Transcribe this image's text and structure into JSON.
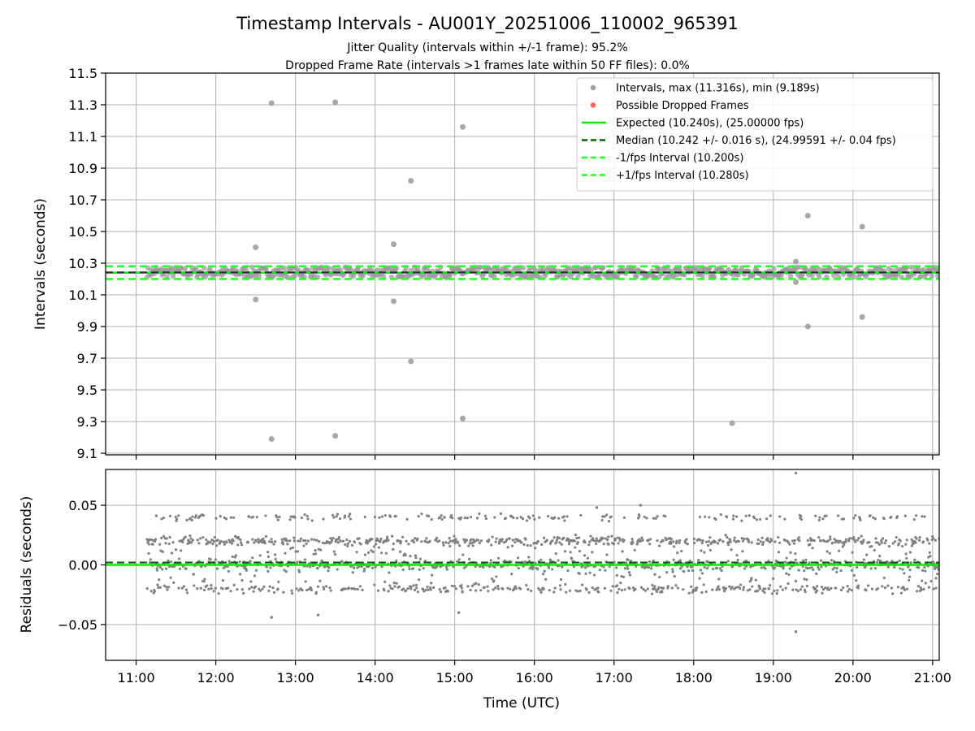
{
  "title": "Timestamp Intervals - AU001Y_20251006_110002_965391",
  "subtitle_lines": [
    "Jitter Quality (intervals within +/-1 frame): 95.2%",
    "Dropped Frame Rate (intervals >1 frames late within 50 FF files): 0.0%"
  ],
  "colors": {
    "points": "#808080",
    "dropped": "#ff4444",
    "expected": "#00ee00",
    "median": "#006400",
    "bounds": "#22ff22",
    "grid": "#b0b0b0",
    "band": "#888888"
  },
  "chart_data": [
    {
      "type": "scatter",
      "title": "",
      "xlabel": "",
      "ylabel": "Intervals (seconds)",
      "xlim": [
        "10:37",
        "21:05"
      ],
      "ylim": [
        9.09,
        11.5
      ],
      "y_ticks": [
        "9.1",
        "9.3",
        "9.5",
        "9.7",
        "9.9",
        "10.1",
        "10.3",
        "10.5",
        "10.7",
        "10.9",
        "11.1",
        "11.3",
        "11.5"
      ],
      "grid": true,
      "legend_position": "top-right",
      "time_span": [
        "11:08",
        "21:05"
      ],
      "dense_band": [
        10.21,
        10.275
      ],
      "outliers": [
        {
          "x": "12:30",
          "y": 10.4
        },
        {
          "x": "12:30",
          "y": 10.07
        },
        {
          "x": "12:42",
          "y": 11.31
        },
        {
          "x": "12:42",
          "y": 9.19
        },
        {
          "x": "13:30",
          "y": 11.316
        },
        {
          "x": "13:30",
          "y": 9.21
        },
        {
          "x": "14:14",
          "y": 10.42
        },
        {
          "x": "14:14",
          "y": 10.06
        },
        {
          "x": "14:27",
          "y": 10.82
        },
        {
          "x": "14:27",
          "y": 9.68
        },
        {
          "x": "15:06",
          "y": 11.16
        },
        {
          "x": "15:06",
          "y": 9.32
        },
        {
          "x": "18:29",
          "y": 9.29
        },
        {
          "x": "19:17",
          "y": 10.31
        },
        {
          "x": "19:17",
          "y": 10.18
        },
        {
          "x": "19:26",
          "y": 10.6
        },
        {
          "x": "19:26",
          "y": 9.9
        },
        {
          "x": "20:07",
          "y": 10.53
        },
        {
          "x": "20:07",
          "y": 9.96
        }
      ],
      "lines": {
        "expected": 10.24,
        "median": 10.242,
        "lower": 10.2,
        "upper": 10.28
      },
      "legend": [
        {
          "label": "Intervals, max (11.316s), min (9.189s)",
          "kind": "point",
          "color": "#a0a0a0"
        },
        {
          "label": "Possible Dropped Frames",
          "kind": "point",
          "color": "#ff6060"
        },
        {
          "label": "Expected (10.240s), (25.00000 fps)",
          "kind": "solid",
          "color": "#00ee00"
        },
        {
          "label": "Median (10.242 +/- 0.016 s), (24.99591 +/- 0.04 fps)",
          "kind": "dashed",
          "color": "#006400"
        },
        {
          "label": "-1/fps Interval (10.200s)",
          "kind": "dashed",
          "color": "#22ff22"
        },
        {
          "label": "+1/fps Interval (10.280s)",
          "kind": "dashed",
          "color": "#22ff22"
        }
      ]
    },
    {
      "type": "scatter",
      "title": "",
      "xlabel": "Time (UTC)",
      "ylabel": "Residuals (seconds)",
      "xlim": [
        "10:37",
        "21:05"
      ],
      "ylim": [
        -0.08,
        0.08
      ],
      "y_ticks": [
        "0.05",
        "0.00",
        "−0.05"
      ],
      "y_tick_values": [
        0.05,
        0.0,
        -0.05
      ],
      "x_ticks": [
        "11:00",
        "12:00",
        "13:00",
        "14:00",
        "15:00",
        "16:00",
        "17:00",
        "18:00",
        "19:00",
        "20:00",
        "21:00"
      ],
      "grid": true,
      "time_span": [
        "11:08",
        "21:05"
      ],
      "residual_clusters": [
        {
          "center": 0.02,
          "spread": 0.0025,
          "share": 0.3
        },
        {
          "center": 0.0,
          "spread": 0.003,
          "share": 0.3
        },
        {
          "center": -0.02,
          "spread": 0.0025,
          "share": 0.18
        },
        {
          "center": 0.04,
          "spread": 0.002,
          "share": 0.1
        },
        {
          "center": 0.01,
          "spread": 0.006,
          "share": 0.06
        },
        {
          "center": -0.01,
          "spread": 0.006,
          "share": 0.06
        }
      ],
      "residual_extremes": [
        {
          "x": "12:42",
          "y": -0.044
        },
        {
          "x": "13:17",
          "y": -0.042
        },
        {
          "x": "15:03",
          "y": -0.04
        },
        {
          "x": "16:47",
          "y": 0.048
        },
        {
          "x": "17:20",
          "y": 0.05
        },
        {
          "x": "19:17",
          "y": 0.077
        },
        {
          "x": "19:17",
          "y": -0.056
        }
      ],
      "lines": {
        "expected": 0.0,
        "median": 0.002
      }
    }
  ]
}
